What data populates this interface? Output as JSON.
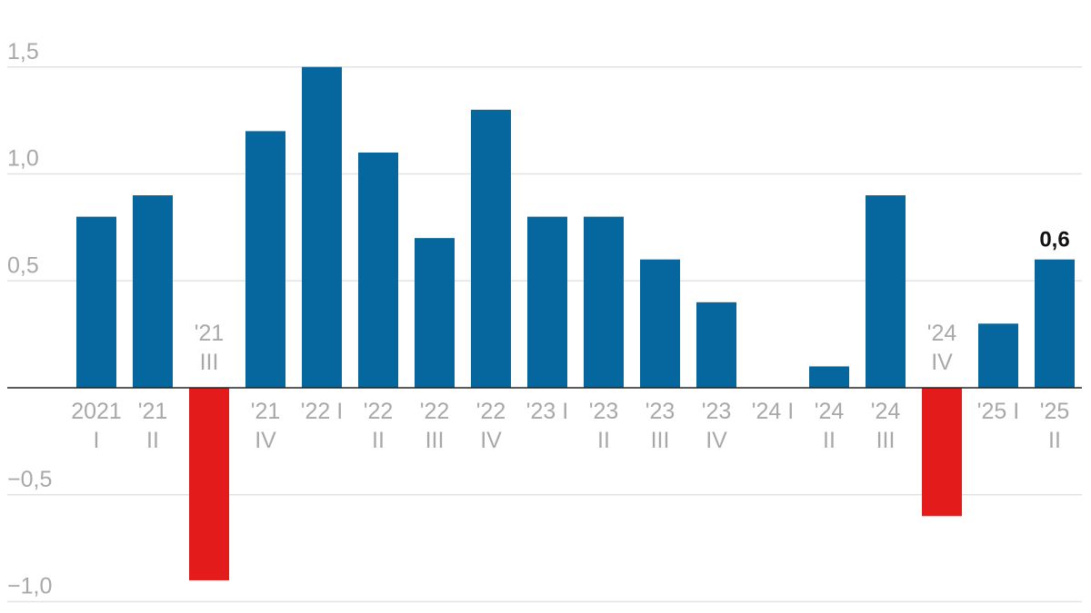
{
  "chart_data": {
    "type": "bar",
    "categories": [
      [
        "2021",
        "I"
      ],
      [
        "'21",
        "II"
      ],
      [
        "'21",
        "III"
      ],
      [
        "'21",
        "IV"
      ],
      [
        "'22 I"
      ],
      [
        "'22",
        "II"
      ],
      [
        "'22",
        "III"
      ],
      [
        "'22",
        "IV"
      ],
      [
        "'23 I"
      ],
      [
        "'23",
        "II"
      ],
      [
        "'23",
        "III"
      ],
      [
        "'23",
        "IV"
      ],
      [
        "'24 I"
      ],
      [
        "'24",
        "II"
      ],
      [
        "'24",
        "III"
      ],
      [
        "'24",
        "IV"
      ],
      [
        "'25 I"
      ],
      [
        "'25",
        "II"
      ]
    ],
    "values": [
      0.8,
      0.9,
      -0.9,
      1.2,
      1.5,
      1.1,
      0.7,
      1.3,
      0.8,
      0.8,
      0.6,
      0.4,
      0.0,
      0.1,
      0.9,
      -0.6,
      0.3,
      0.6
    ],
    "yticks": [
      1.5,
      1.0,
      0.5,
      -0.5,
      -1.0
    ],
    "ytick_labels": [
      "1,5",
      "1,0",
      "0,5",
      "−0,5",
      "−1,0"
    ],
    "ylim": [
      -1.0,
      1.5
    ],
    "grid": true,
    "highlight_label": "0,6",
    "colors": {
      "positive": "#06679e",
      "negative": "#e41b1b",
      "grid": "#e3e3e3",
      "axis": "#222222",
      "tick": "#a8a8a8"
    }
  }
}
